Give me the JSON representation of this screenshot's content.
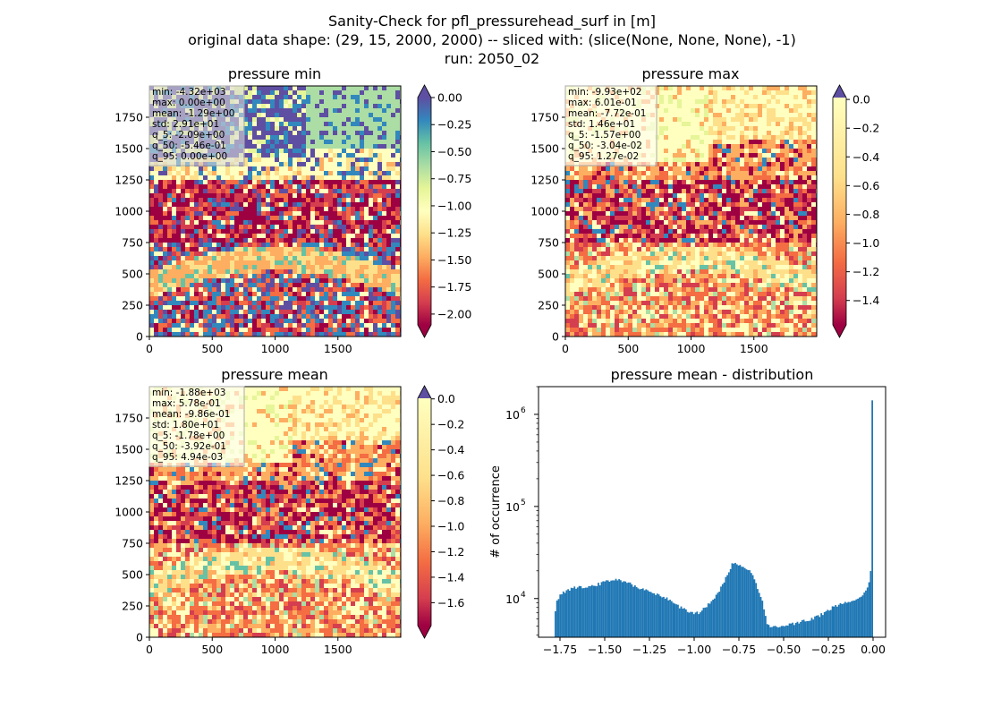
{
  "suptitle": [
    "Sanity-Check for pfl_pressurehead_surf in [m]",
    "original data shape: (29, 15, 2000, 2000) -- sliced with: (slice(None, None, None), -1)",
    "run: 2050_02"
  ],
  "colors": {
    "spectral": [
      "#9e0142",
      "#d53e4f",
      "#f46d43",
      "#fdae61",
      "#fee08b",
      "#ffffbf",
      "#e6f598",
      "#abdda4",
      "#66c2a5",
      "#3288bd",
      "#5e4fa2"
    ],
    "histogram": "#1f77b4"
  },
  "panels": [
    {
      "title": "pressure min",
      "x_ticks": [
        "0",
        "500",
        "1000",
        "1500"
      ],
      "y_ticks": [
        "0",
        "250",
        "500",
        "750",
        "1000",
        "1250",
        "1500",
        "1750"
      ],
      "stats": [
        "min: -4.32e+03",
        "max: 0.00e+00",
        "mean: -1.29e+00",
        "std: 2.91e+01",
        "q_5: -2.09e+00",
        "q_50: -5.46e-01",
        "q_95: 0.00e+00"
      ],
      "colorbar": {
        "vmin": -2.1,
        "vmax": 0.0,
        "extend": "both",
        "ticks": [
          "0.00",
          "−0.25",
          "−0.50",
          "−0.75",
          "−1.00",
          "−1.25",
          "−1.50",
          "−1.75",
          "−2.00"
        ]
      }
    },
    {
      "title": "pressure max",
      "x_ticks": [
        "0",
        "500",
        "1000",
        "1500"
      ],
      "y_ticks": [
        "0",
        "250",
        "500",
        "750",
        "1000",
        "1250",
        "1500",
        "1750"
      ],
      "stats": [
        "min: -9.93e+02",
        "max: 6.01e-01",
        "mean: -7.72e-01",
        "std: 1.46e+01",
        "q_5: -1.57e+00",
        "q_50: -3.04e-02",
        "q_95: 1.27e-02"
      ],
      "colorbar": {
        "vmin": -1.57,
        "vmax": 0.013,
        "extend": "both",
        "ticks": [
          "0.0",
          "−0.2",
          "−0.4",
          "−0.6",
          "−0.8",
          "−1.0",
          "−1.2",
          "−1.4"
        ]
      }
    },
    {
      "title": "pressure mean",
      "x_ticks": [
        "0",
        "500",
        "1000",
        "1500"
      ],
      "y_ticks": [
        "0",
        "250",
        "500",
        "750",
        "1000",
        "1250",
        "1500",
        "1750"
      ],
      "stats": [
        "min: -1.88e+03",
        "max: 5.78e-01",
        "mean: -9.86e-01",
        "std: 1.80e+01",
        "q_5: -1.78e+00",
        "q_50: -3.92e-01",
        "q_95: 4.94e-03"
      ],
      "colorbar": {
        "vmin": -1.78,
        "vmax": 0.005,
        "extend": "both",
        "ticks": [
          "0.0",
          "−0.2",
          "−0.4",
          "−0.6",
          "−0.8",
          "−1.0",
          "−1.2",
          "−1.4",
          "−1.6"
        ]
      }
    }
  ],
  "chart_data": [
    {
      "type": "heatmap",
      "title": "pressure min",
      "xlim": [
        0,
        2000
      ],
      "ylim": [
        0,
        2000
      ],
      "color_range": [
        -2.1,
        0.0
      ]
    },
    {
      "type": "heatmap",
      "title": "pressure max",
      "xlim": [
        0,
        2000
      ],
      "ylim": [
        0,
        2000
      ],
      "color_range": [
        -1.57,
        0.013
      ]
    },
    {
      "type": "heatmap",
      "title": "pressure mean",
      "xlim": [
        0,
        2000
      ],
      "ylim": [
        0,
        2000
      ],
      "color_range": [
        -1.78,
        0.005
      ]
    },
    {
      "type": "bar",
      "title": "pressure mean - distribution",
      "ylabel": "# of occurrence",
      "yscale": "log",
      "xlim": [
        -1.87,
        0.07
      ],
      "ylim": [
        3800,
        2000000
      ],
      "x_ticks": [
        "−1.75",
        "−1.50",
        "−1.25",
        "−1.00",
        "−0.75",
        "−0.50",
        "−0.25",
        "0.00"
      ],
      "y_ticks": [
        "10^4",
        "10^5",
        "10^6"
      ],
      "bin_range": [
        -1.78,
        0.0
      ],
      "profile_x": [
        -1.78,
        -1.77,
        -1.75,
        -1.72,
        -1.68,
        -1.62,
        -1.55,
        -1.48,
        -1.44,
        -1.4,
        -1.36,
        -1.3,
        -1.25,
        -1.2,
        -1.15,
        -1.1,
        -1.05,
        -1.0,
        -0.97,
        -0.94,
        -0.9,
        -0.86,
        -0.82,
        -0.8,
        -0.78,
        -0.76,
        -0.74,
        -0.72,
        -0.7,
        -0.68,
        -0.66,
        -0.64,
        -0.62,
        -0.61,
        -0.6,
        -0.59,
        -0.55,
        -0.5,
        -0.45,
        -0.4,
        -0.35,
        -0.3,
        -0.25,
        -0.2,
        -0.15,
        -0.1,
        -0.06,
        -0.04,
        -0.02,
        -0.01,
        -0.005,
        0.0
      ],
      "profile_y": [
        6000,
        9000,
        11000,
        12000,
        13000,
        13500,
        14000,
        15500,
        16500,
        15500,
        14500,
        13000,
        11800,
        11000,
        10000,
        8500,
        7500,
        7000,
        7000,
        8000,
        9500,
        12000,
        17000,
        21000,
        25000,
        24000,
        23000,
        22000,
        21000,
        19000,
        16000,
        12000,
        9500,
        8000,
        6500,
        5000,
        5000,
        5100,
        5300,
        5600,
        6000,
        6500,
        7500,
        8500,
        9000,
        9800,
        10500,
        12000,
        15000,
        24000,
        140000,
        1400000
      ]
    }
  ]
}
